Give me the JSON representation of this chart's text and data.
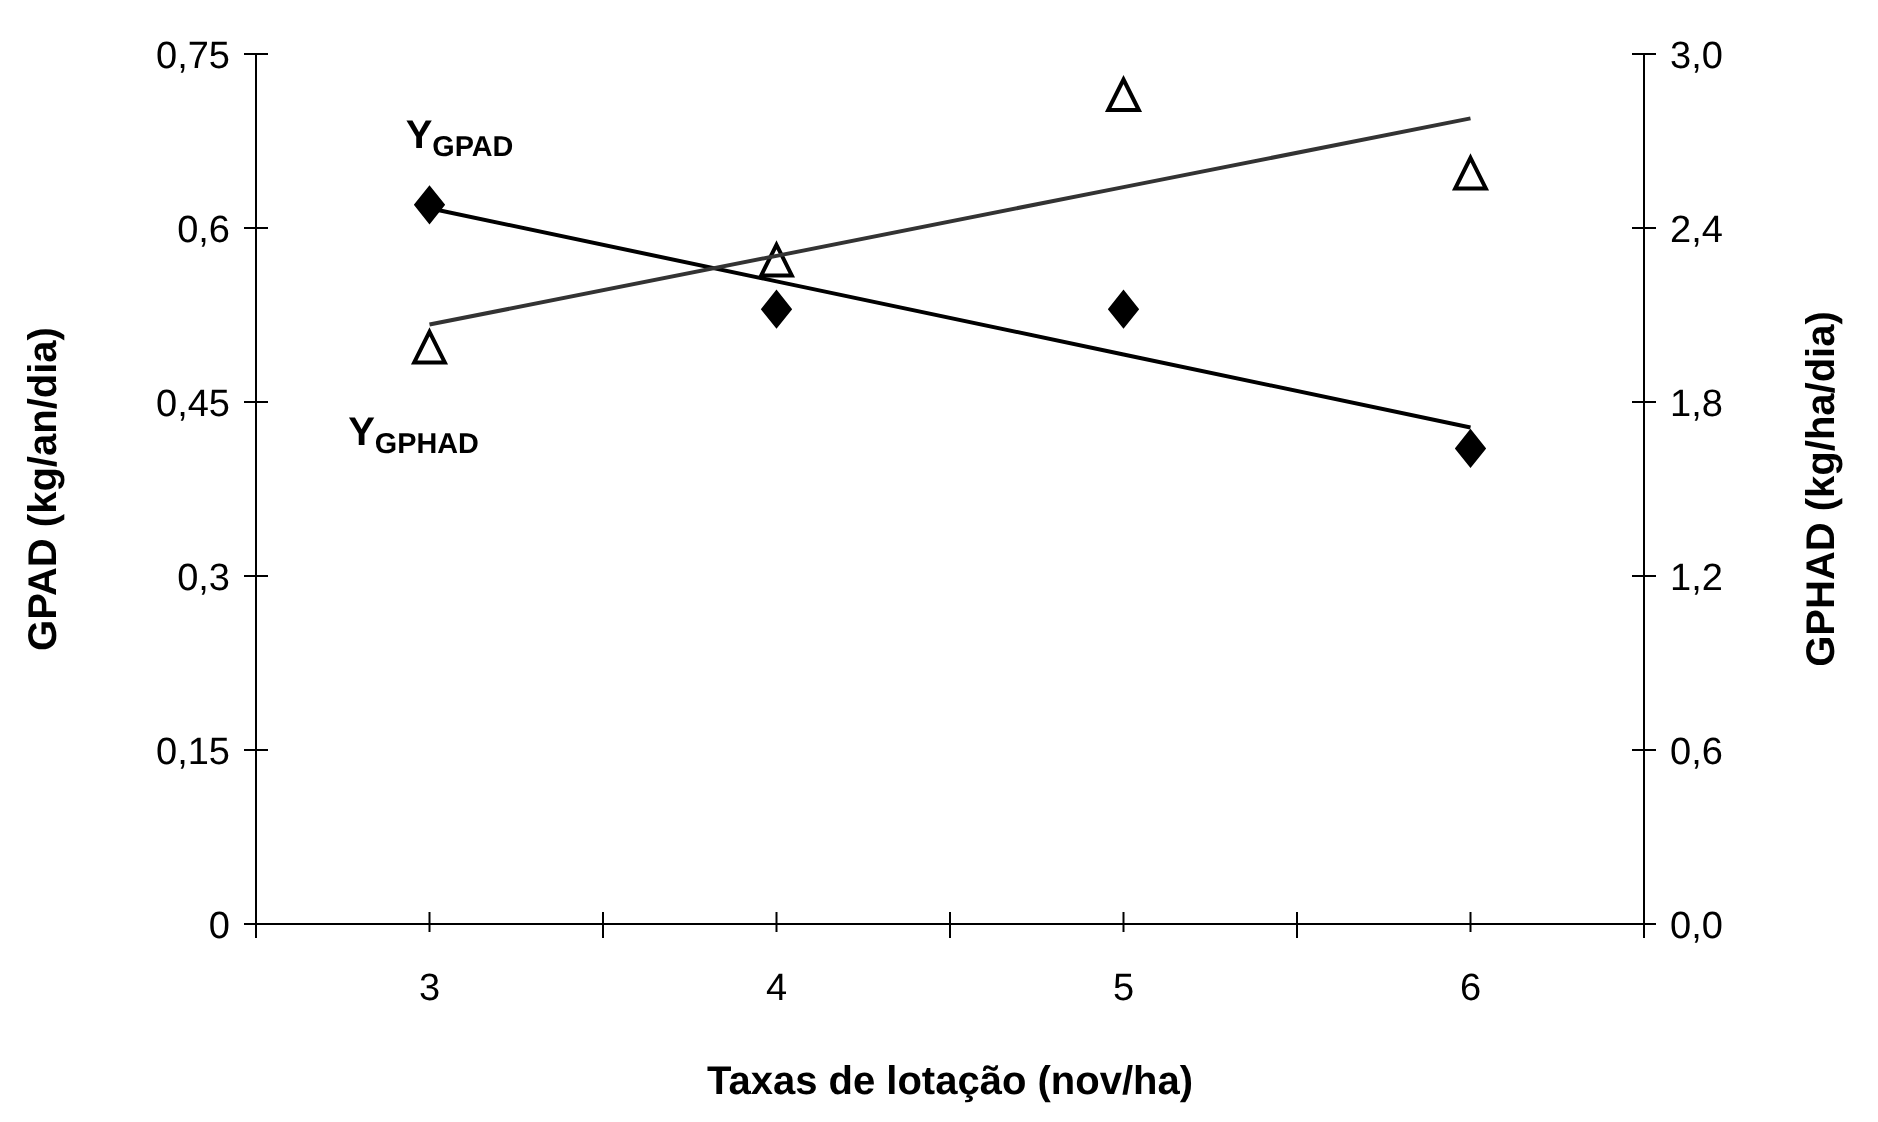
{
  "chart_data": {
    "type": "scatter",
    "xlabel": "Taxas de lotação (nov/ha)",
    "ylabel": "GPAD (kg/an/dia)",
    "y2label": "GPHAD (kg/ha/dia)",
    "x": [
      3,
      4,
      5,
      6
    ],
    "series": [
      {
        "color": "#000000",
        "marker": "diamond",
        "values": [
          0.62,
          0.53,
          0.53,
          0.41
        ]
      },
      {
        "axis": "y2",
        "color": "#ffffff",
        "marker": "triangle",
        "values": [
          1.98,
          2.28,
          2.85,
          2.58
        ]
      },
      {
        "type": "line",
        "name": "Y$_{GPAD}$",
        "color": "#000000",
        "values": [
          0.617,
          0.554,
          0.491,
          0.428
        ]
      },
      {
        "type": "line",
        "name": "Y$_{GPHAD}$",
        "axis": "y2",
        "color": "#333333",
        "values": [
          2.067,
          2.304,
          2.541,
          2.778
        ]
      }
    ],
    "xlim": [
      2.5,
      6.5
    ],
    "xticks": [
      {
        "value": 2.5,
        "label": null
      },
      3,
      {
        "value": 3.5,
        "label": null
      },
      4,
      {
        "value": 4.5,
        "label": null
      },
      5,
      {
        "value": 5.5,
        "label": null
      },
      6,
      {
        "value": 6.5,
        "label": null
      }
    ],
    "ylim": [
      0,
      0.75
    ],
    "yticks": [
      0,
      {
        "value": 0.15,
        "label": "0,15"
      },
      {
        "value": 0.3,
        "label": "0,3"
      },
      {
        "value": 0.45,
        "label": "0,45"
      },
      {
        "value": 0.6,
        "label": "0,6"
      },
      {
        "value": 0.75,
        "label": "0,75"
      }
    ],
    "y2lim": [
      0,
      3
    ],
    "y2ticks": [
      {
        "value": 0,
        "label": "0,0"
      },
      {
        "value": 0.6,
        "label": "0,6"
      },
      {
        "value": 1.2,
        "label": "1,2"
      },
      {
        "value": 1.8,
        "label": "1,8"
      },
      {
        "value": 2.4,
        "label": "2,4"
      },
      {
        "value": 3,
        "label": "3,0"
      }
    ],
    "grid": false
  }
}
